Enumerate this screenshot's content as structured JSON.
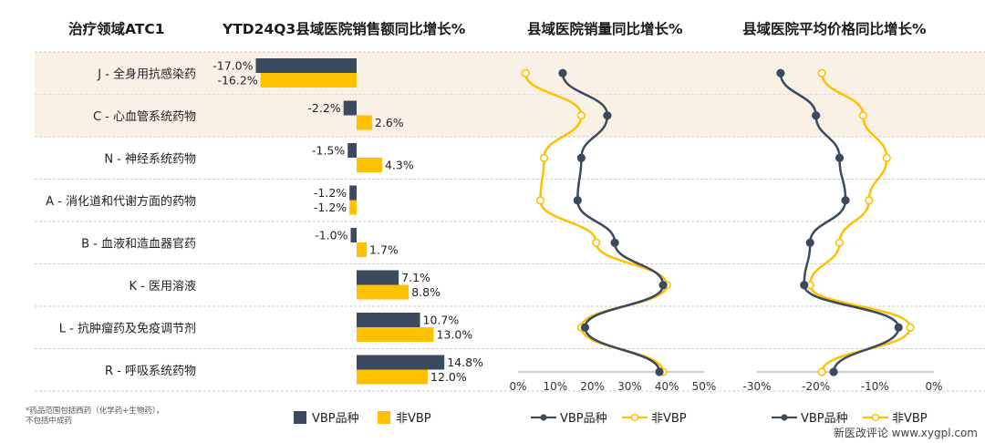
{
  "headers": {
    "category": "治疗领域ATC1",
    "sales": "YTD24Q3县域医院销售额同比增长%",
    "volume": "县域医院销量同比增长%",
    "price": "县域医院平均价格同比增长%"
  },
  "footnote_line1": "*药品范围包括西药（化学药+生物药），",
  "footnote_line2": "不包括中成药",
  "source": "新医改评论 www.xygpl.com",
  "colors": {
    "vbp": "#3b4a5e",
    "nonvbp": "#ffc000",
    "highlight": "#faf1e6",
    "grid": "#bbbbbb"
  },
  "chart_data": [
    {
      "type": "bar",
      "orientation": "horizontal",
      "title": "YTD24Q3县域医院销售额同比增长%",
      "categories": [
        "J - 全身用抗感染药",
        "C - 心血管系统药物",
        "N - 神经系统药物",
        "A - 消化道和代谢方面的药物",
        "B - 血液和造血器官药",
        "K - 医用溶液",
        "L - 抗肿瘤药及免疫调节剂",
        "R - 呼吸系统药物"
      ],
      "highlighted_categories": [
        "J - 全身用抗感染药",
        "C - 心血管系统药物"
      ],
      "series": [
        {
          "name": "VBP品种",
          "values": [
            -17.0,
            -2.2,
            -1.5,
            -1.2,
            -1.0,
            7.1,
            10.7,
            14.8
          ],
          "labels": [
            "-17.0%",
            "-2.2%",
            "-1.5%",
            "-1.2%",
            "-1.0%",
            "7.1%",
            "10.7%",
            "14.8%"
          ]
        },
        {
          "name": "非VBP",
          "values": [
            -16.2,
            2.6,
            4.3,
            -1.2,
            1.7,
            8.8,
            13.0,
            12.0
          ],
          "labels": [
            "-16.2%",
            "2.6%",
            "4.3%",
            "-1.2%",
            "1.7%",
            "8.8%",
            "13.0%",
            "12.0%"
          ]
        }
      ],
      "legend": "bottom"
    },
    {
      "type": "line",
      "title": "县域医院销量同比增长%",
      "xlim": [
        0,
        50
      ],
      "xticks": [
        "0%",
        "10%",
        "20%",
        "30%",
        "40%",
        "50%"
      ],
      "series": [
        {
          "name": "VBP品种",
          "values": [
            12,
            24,
            17,
            16,
            26,
            39,
            18,
            38
          ]
        },
        {
          "name": "非VBP",
          "values": [
            2,
            17,
            7,
            6,
            21,
            40,
            17,
            39
          ]
        }
      ],
      "legend": "bottom"
    },
    {
      "type": "line",
      "title": "县域医院平均价格同比增长%",
      "xlim": [
        -30,
        0
      ],
      "xticks": [
        "-30%",
        "-20%",
        "-10%",
        "0%"
      ],
      "series": [
        {
          "name": "VBP品种",
          "values": [
            -26,
            -20,
            -16,
            -15,
            -21,
            -22,
            -6,
            -17
          ]
        },
        {
          "name": "非VBP",
          "values": [
            -19,
            -12,
            -8,
            -11,
            -16,
            -21,
            -4,
            -19
          ]
        }
      ],
      "legend": "bottom"
    }
  ]
}
